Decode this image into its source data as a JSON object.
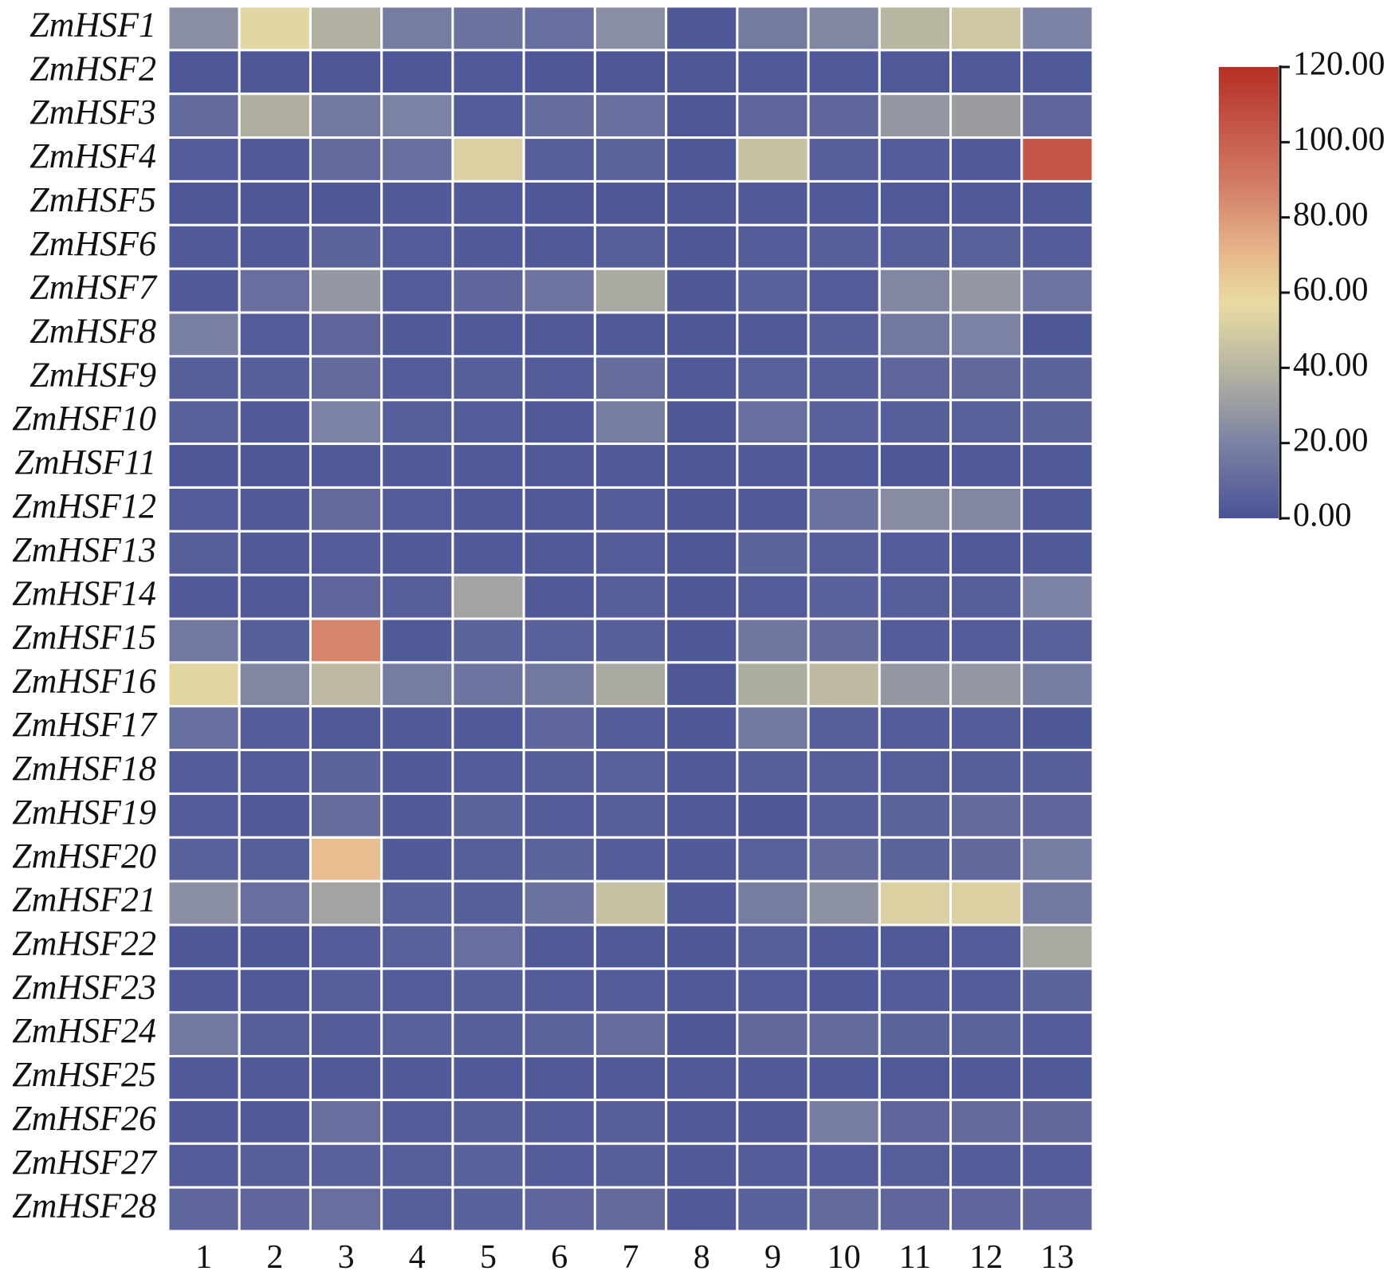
{
  "chart_data": {
    "type": "heatmap",
    "title": "",
    "xlabel": "",
    "ylabel": "",
    "rows": [
      "ZmHSF1",
      "ZmHSF2",
      "ZmHSF3",
      "ZmHSF4",
      "ZmHSF5",
      "ZmHSF6",
      "ZmHSF7",
      "ZmHSF8",
      "ZmHSF9",
      "ZmHSF10",
      "ZmHSF11",
      "ZmHSF12",
      "ZmHSF13",
      "ZmHSF14",
      "ZmHSF15",
      "ZmHSF16",
      "ZmHSF17",
      "ZmHSF18",
      "ZmHSF19",
      "ZmHSF20",
      "ZmHSF21",
      "ZmHSF22",
      "ZmHSF23",
      "ZmHSF24",
      "ZmHSF25",
      "ZmHSF26",
      "ZmHSF27",
      "ZmHSF28"
    ],
    "columns": [
      "1",
      "2",
      "3",
      "4",
      "5",
      "6",
      "7",
      "8",
      "9",
      "10",
      "11",
      "12",
      "13"
    ],
    "values": [
      [
        25,
        55,
        38,
        18,
        13,
        12,
        25,
        2,
        17,
        22,
        40,
        48,
        20
      ],
      [
        2,
        2,
        2,
        2,
        3,
        2,
        2,
        2,
        3,
        3,
        3,
        3,
        3
      ],
      [
        10,
        37,
        16,
        20,
        4,
        11,
        12,
        2,
        8,
        8,
        28,
        30,
        8
      ],
      [
        4,
        3,
        10,
        12,
        52,
        5,
        7,
        2,
        45,
        5,
        4,
        3,
        104
      ],
      [
        2,
        2,
        2,
        3,
        3,
        2,
        2,
        2,
        3,
        3,
        3,
        3,
        3
      ],
      [
        3,
        3,
        7,
        4,
        3,
        3,
        5,
        2,
        4,
        5,
        5,
        6,
        4
      ],
      [
        3,
        12,
        28,
        4,
        8,
        14,
        35,
        2,
        6,
        4,
        22,
        28,
        14
      ],
      [
        19,
        4,
        8,
        3,
        3,
        3,
        3,
        2,
        3,
        5,
        16,
        20,
        2
      ],
      [
        5,
        5,
        10,
        4,
        5,
        4,
        11,
        3,
        6,
        5,
        8,
        9,
        7
      ],
      [
        6,
        3,
        20,
        5,
        4,
        3,
        18,
        2,
        12,
        6,
        5,
        6,
        7
      ],
      [
        2,
        2,
        3,
        3,
        3,
        3,
        3,
        2,
        3,
        3,
        2,
        3,
        3
      ],
      [
        4,
        3,
        10,
        4,
        3,
        3,
        4,
        2,
        3,
        13,
        24,
        22,
        3
      ],
      [
        5,
        3,
        4,
        3,
        3,
        3,
        4,
        2,
        7,
        5,
        4,
        3,
        3
      ],
      [
        3,
        3,
        8,
        5,
        33,
        3,
        5,
        2,
        4,
        6,
        5,
        5,
        20
      ],
      [
        16,
        5,
        86,
        3,
        7,
        6,
        5,
        2,
        15,
        10,
        4,
        4,
        6
      ],
      [
        55,
        22,
        42,
        18,
        14,
        16,
        35,
        2,
        36,
        42,
        28,
        28,
        18
      ],
      [
        12,
        4,
        3,
        3,
        3,
        8,
        4,
        2,
        16,
        5,
        4,
        4,
        2
      ],
      [
        4,
        4,
        7,
        3,
        4,
        5,
        6,
        3,
        5,
        5,
        5,
        5,
        5
      ],
      [
        4,
        3,
        11,
        3,
        7,
        4,
        5,
        3,
        2,
        5,
        7,
        10,
        8
      ],
      [
        6,
        5,
        68,
        3,
        5,
        7,
        4,
        3,
        6,
        10,
        7,
        9,
        18
      ],
      [
        25,
        12,
        33,
        6,
        5,
        13,
        45,
        3,
        18,
        26,
        52,
        52,
        16
      ],
      [
        2,
        2,
        4,
        6,
        12,
        3,
        3,
        2,
        5,
        3,
        3,
        4,
        35
      ],
      [
        3,
        3,
        5,
        4,
        5,
        4,
        4,
        3,
        4,
        3,
        4,
        4,
        7
      ],
      [
        16,
        5,
        4,
        6,
        5,
        7,
        11,
        2,
        9,
        10,
        7,
        7,
        4
      ],
      [
        3,
        3,
        3,
        3,
        3,
        3,
        3,
        3,
        3,
        3,
        3,
        3,
        3
      ],
      [
        3,
        3,
        12,
        4,
        5,
        4,
        5,
        3,
        3,
        18,
        8,
        10,
        9
      ],
      [
        4,
        5,
        6,
        5,
        6,
        4,
        5,
        3,
        4,
        4,
        5,
        4,
        4
      ],
      [
        8,
        8,
        12,
        5,
        6,
        8,
        10,
        3,
        6,
        10,
        8,
        8,
        8
      ]
    ],
    "colorbar": {
      "min": 0,
      "max": 120,
      "ticks": [
        "0.00",
        "20.00",
        "40.00",
        "60.00",
        "80.00",
        "100.00",
        "120.00"
      ],
      "tick_values": [
        0,
        20,
        40,
        60,
        80,
        100,
        120
      ],
      "stops": [
        {
          "value": 0,
          "color": "#4a5396"
        },
        {
          "value": 20,
          "color": "#7b82a3"
        },
        {
          "value": 40,
          "color": "#b8b6a1"
        },
        {
          "value": 57,
          "color": "#e8dba3"
        },
        {
          "value": 70,
          "color": "#e8b88d"
        },
        {
          "value": 90,
          "color": "#d17962"
        },
        {
          "value": 120,
          "color": "#b62f25"
        }
      ]
    },
    "legend_position": "top-right"
  }
}
